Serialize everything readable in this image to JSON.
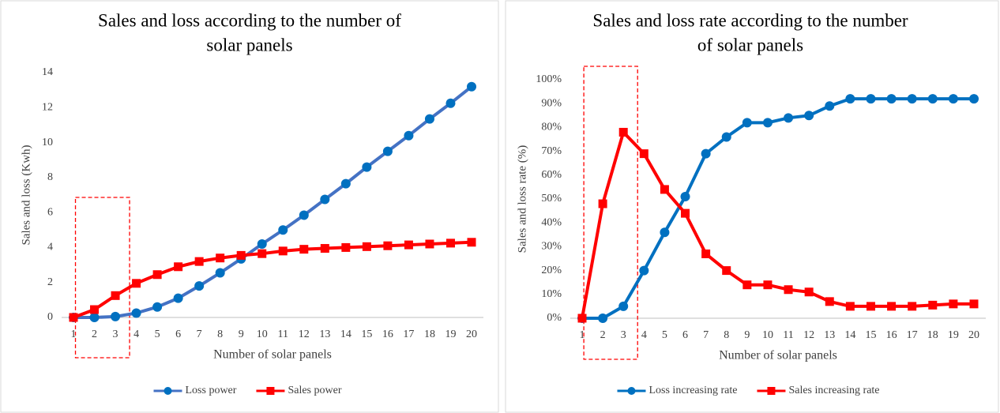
{
  "chart_data": [
    {
      "type": "line",
      "title": [
        "Sales and loss according to the number of",
        "solar panels"
      ],
      "x_label": "Number of solar panels",
      "y_label": "Sales and loss  (Kwh)",
      "categories": [
        1,
        2,
        3,
        4,
        5,
        6,
        7,
        8,
        9,
        10,
        11,
        12,
        13,
        14,
        15,
        16,
        17,
        18,
        19,
        20
      ],
      "series": [
        {
          "name": "Loss power",
          "color": "#4472c4",
          "marker_color": "#0070c0",
          "marker": "circle",
          "values": [
            0,
            0,
            0.05,
            0.25,
            0.6,
            1.1,
            1.8,
            2.55,
            3.35,
            4.2,
            5.0,
            5.85,
            6.75,
            7.65,
            8.6,
            9.5,
            10.4,
            11.35,
            12.25,
            13.2
          ]
        },
        {
          "name": "Sales power",
          "color": "#ff0000",
          "marker_color": "#ff0000",
          "marker": "square",
          "values": [
            0,
            0.45,
            1.25,
            1.95,
            2.45,
            2.9,
            3.2,
            3.4,
            3.55,
            3.65,
            3.8,
            3.9,
            3.95,
            4.0,
            4.05,
            4.1,
            4.15,
            4.2,
            4.25,
            4.3
          ]
        }
      ],
      "ylim": [
        0,
        14
      ],
      "yticks": [
        0,
        2,
        4,
        6,
        8,
        10,
        12,
        14
      ],
      "grid": false,
      "legend": "bottom"
    },
    {
      "type": "line",
      "title": [
        "Sales and loss rate according to the number",
        "of solar panels"
      ],
      "x_label": "Number of solar panels",
      "y_label": "Sales and loss rate (%)",
      "categories": [
        1,
        2,
        3,
        4,
        5,
        6,
        7,
        8,
        9,
        10,
        11,
        12,
        13,
        14,
        15,
        16,
        17,
        18,
        19,
        20
      ],
      "series": [
        {
          "name": "Loss increasing rate",
          "color": "#0070c0",
          "marker_color": "#0070c0",
          "marker": "circle",
          "values": [
            0,
            0,
            5,
            20,
            36,
            51,
            69,
            76,
            82,
            82,
            84,
            85,
            89,
            92,
            92,
            92,
            92,
            92,
            92,
            92
          ]
        },
        {
          "name": "Sales increasing rate",
          "color": "#ff0000",
          "marker_color": "#ff0000",
          "marker": "square",
          "values": [
            0,
            48,
            78,
            69,
            54,
            44,
            27,
            20,
            14,
            14,
            12,
            11,
            7,
            5,
            5,
            5,
            5,
            5.5,
            6,
            6
          ]
        }
      ],
      "ylim": [
        0,
        100
      ],
      "yticks": [
        {
          "value": 0,
          "label": "0%"
        },
        {
          "value": 10,
          "label": "10%"
        },
        {
          "value": 20,
          "label": "20%"
        },
        {
          "value": 30,
          "label": "30%"
        },
        {
          "value": 40,
          "label": "40%"
        },
        {
          "value": 50,
          "label": "50%"
        },
        {
          "value": 60,
          "label": "60%"
        },
        {
          "value": 70,
          "label": "70%"
        },
        {
          "value": 80,
          "label": "80%"
        },
        {
          "value": 90,
          "label": "90%"
        },
        {
          "value": 100,
          "label": "100%"
        }
      ],
      "grid": false,
      "legend": "bottom"
    }
  ]
}
